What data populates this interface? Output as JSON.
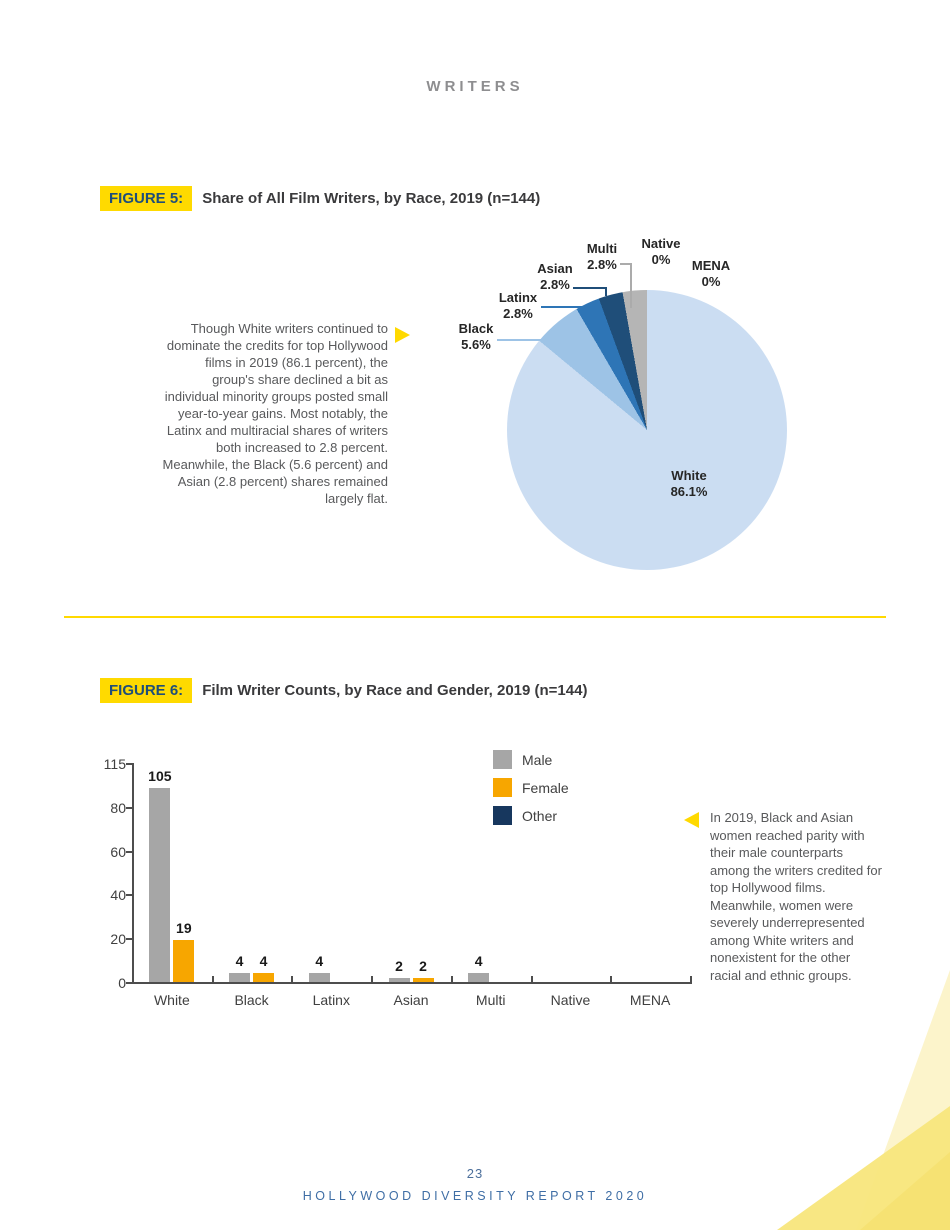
{
  "page": {
    "header": "WRITERS",
    "page_number": "23",
    "footer": "HOLLYWOOD DIVERSITY REPORT 2020"
  },
  "figure5": {
    "tag": "FIGURE 5:",
    "title": "Share of All Film Writers, by Race, 2019 (n=144)",
    "commentary": "Though White writers continued to dominate the credits for top Hollywood films in 2019 (86.1 percent), the group's share declined a bit as individual minority groups posted small year-to-year gains. Most notably, the Latinx and multiracial shares of writers both increased to 2.8 percent.  Meanwhile, the Black (5.6 percent) and Asian (2.8 percent) shares remained largely flat.",
    "chart_data": {
      "type": "pie",
      "title": "Share of All Film Writers, by Race, 2019 (n=144)",
      "start_angle": "12 o'clock, clockwise",
      "slices": [
        {
          "label": "White",
          "pct": "86.1%",
          "value": 86.1,
          "color": "#cbddf2"
        },
        {
          "label": "Black",
          "pct": "5.6%",
          "value": 5.6,
          "color": "#9dc3e6"
        },
        {
          "label": "Latinx",
          "pct": "2.8%",
          "value": 2.8,
          "color": "#2e75b6"
        },
        {
          "label": "Asian",
          "pct": "2.8%",
          "value": 2.8,
          "color": "#1f4e79"
        },
        {
          "label": "Multi",
          "pct": "2.8%",
          "value": 2.8,
          "color": "#b5b5b5"
        },
        {
          "label": "Native",
          "pct": "0%",
          "value": 0,
          "color": null
        },
        {
          "label": "MENA",
          "pct": "0%",
          "value": 0,
          "color": null
        }
      ]
    }
  },
  "figure6": {
    "tag": "FIGURE 6:",
    "title": "Film Writer Counts, by Race and Gender, 2019 (n=144)",
    "commentary": "In 2019, Black and Asian women reached parity with their male counterparts among the writers credited for top Hollywood films. Meanwhile, women were severely underrepresented among White writers and nonexistent for the other racial and ethnic groups.",
    "chart_data": {
      "type": "bar",
      "categories": [
        "White",
        "Black",
        "Latinx",
        "Asian",
        "Multi",
        "Native",
        "MENA"
      ],
      "series": [
        {
          "name": "Male",
          "color": "#a6a6a6",
          "values": [
            105,
            4,
            4,
            2,
            4,
            0,
            0
          ]
        },
        {
          "name": "Female",
          "color": "#f7a600",
          "values": [
            19,
            4,
            0,
            2,
            0,
            0,
            0
          ]
        },
        {
          "name": "Other",
          "color": "#17375e",
          "values": [
            0,
            0,
            0,
            0,
            0,
            0,
            0
          ]
        }
      ],
      "yticks": [
        0,
        20,
        40,
        60,
        80,
        115
      ],
      "ylim": [
        0,
        115
      ],
      "legend_position": "top-right",
      "grid": false
    }
  },
  "colors": {
    "accent_yellow": "#ffda00",
    "tag_text_blue": "#1f4e79",
    "footer_blue": "#3f6ea5",
    "text_gray": "#58595b"
  }
}
